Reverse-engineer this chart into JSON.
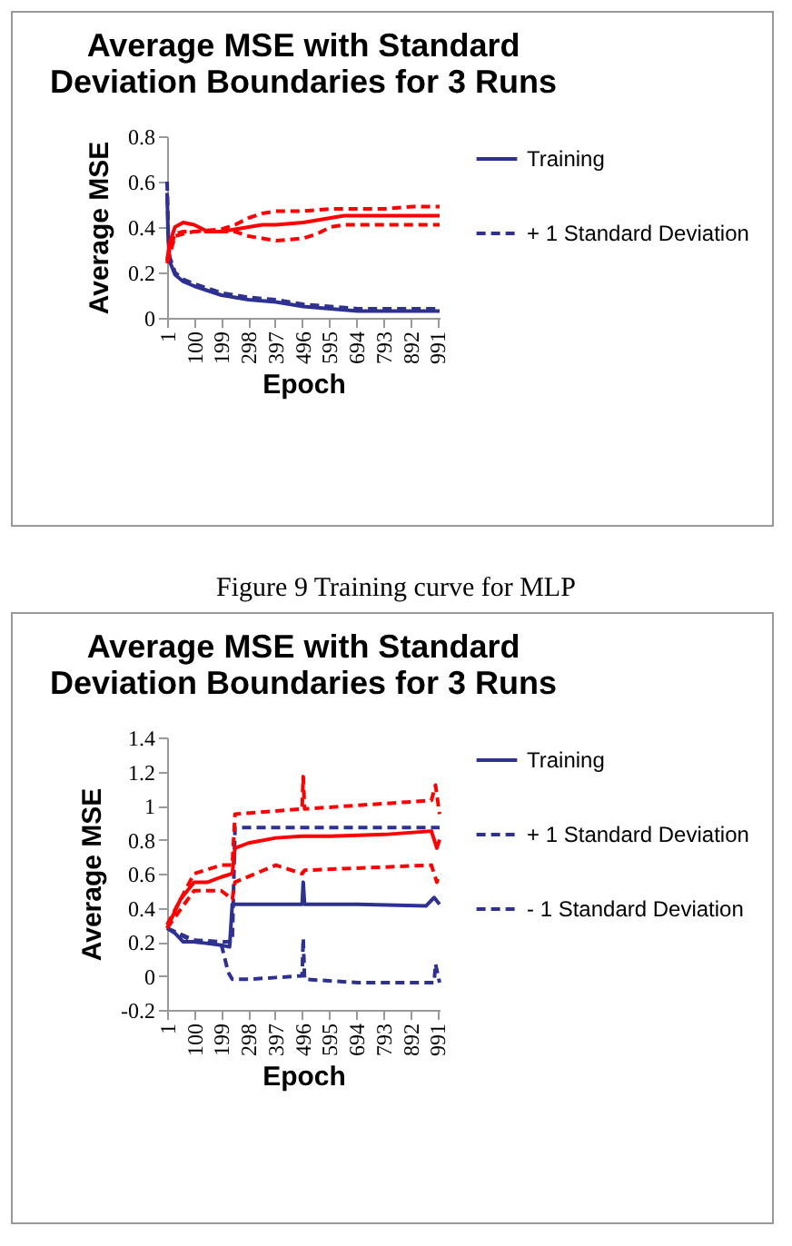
{
  "chart_data": [
    {
      "type": "line",
      "title": [
        "Average MSE with Standard",
        "Deviation Boundaries for 3 Runs"
      ],
      "xlabel": "Epoch",
      "ylabel": "Average MSE",
      "xlim": [
        1,
        1000
      ],
      "xticks": [
        1,
        100,
        199,
        298,
        397,
        496,
        595,
        694,
        793,
        892,
        991
      ],
      "ylim": [
        0,
        0.8
      ],
      "yticks": [
        0,
        0.2,
        0.4,
        0.6,
        0.8
      ],
      "grid": false,
      "legend": "right",
      "marker": "none",
      "annotations": [
        "Figure 9 Training curve for MLP"
      ],
      "series": [
        {
          "name": "Training",
          "color": "#2e3192",
          "line_style": "solid",
          "x": [
            1,
            5,
            10,
            30,
            60,
            100,
            150,
            200,
            250,
            300,
            400,
            500,
            600,
            700,
            800,
            900,
            1000
          ],
          "values": [
            0.55,
            0.35,
            0.25,
            0.19,
            0.16,
            0.14,
            0.12,
            0.1,
            0.09,
            0.08,
            0.07,
            0.05,
            0.04,
            0.03,
            0.03,
            0.03,
            0.03
          ]
        },
        {
          "name": "+ 1 Standard Deviation",
          "color": "#2e3192",
          "line_style": "dashed",
          "x": [
            1,
            5,
            10,
            30,
            60,
            100,
            150,
            200,
            250,
            300,
            400,
            500,
            600,
            700,
            800,
            900,
            1000
          ],
          "values": [
            0.6,
            0.38,
            0.27,
            0.2,
            0.17,
            0.15,
            0.13,
            0.11,
            0.1,
            0.09,
            0.08,
            0.06,
            0.05,
            0.04,
            0.04,
            0.04,
            0.04
          ]
        },
        {
          "color": "#ff0000",
          "line_style": "solid",
          "x": [
            1,
            10,
            30,
            60,
            100,
            150,
            200,
            250,
            300,
            350,
            400,
            500,
            600,
            650,
            700,
            800,
            900,
            1000
          ],
          "values": [
            0.25,
            0.33,
            0.4,
            0.42,
            0.41,
            0.38,
            0.38,
            0.39,
            0.4,
            0.41,
            0.41,
            0.42,
            0.44,
            0.45,
            0.45,
            0.45,
            0.45,
            0.45
          ]
        },
        {
          "color": "#ff0000",
          "line_style": "dashed",
          "x": [
            1,
            30,
            60,
            100,
            200,
            250,
            300,
            350,
            400,
            500,
            600,
            700,
            800,
            900,
            1000
          ],
          "values": [
            0.26,
            0.37,
            0.38,
            0.38,
            0.39,
            0.41,
            0.44,
            0.46,
            0.47,
            0.47,
            0.48,
            0.48,
            0.48,
            0.49,
            0.49
          ]
        },
        {
          "color": "#ff0000",
          "line_style": "dashed",
          "x": [
            1,
            30,
            60,
            100,
            200,
            250,
            300,
            350,
            400,
            500,
            550,
            600,
            650,
            700,
            800,
            900,
            1000
          ],
          "values": [
            0.24,
            0.36,
            0.37,
            0.38,
            0.38,
            0.38,
            0.36,
            0.35,
            0.34,
            0.35,
            0.37,
            0.4,
            0.41,
            0.41,
            0.41,
            0.41,
            0.41
          ]
        }
      ]
    },
    {
      "type": "line",
      "title": [
        "Average MSE with Standard",
        "Deviation Boundaries for 3 Runs"
      ],
      "xlabel": "Epoch",
      "ylabel": "Average MSE",
      "xlim": [
        1,
        1000
      ],
      "xticks": [
        1,
        100,
        199,
        298,
        397,
        496,
        595,
        694,
        793,
        892,
        991
      ],
      "ylim": [
        -0.2,
        1.4
      ],
      "yticks": [
        -0.2,
        0,
        0.2,
        0.4,
        0.6,
        0.8,
        1,
        1.2,
        1.4
      ],
      "grid": false,
      "legend": "right",
      "marker": "none",
      "series": [
        {
          "name": "Training",
          "color": "#2e3192",
          "line_style": "solid",
          "x": [
            1,
            30,
            60,
            100,
            150,
            199,
            230,
            240,
            300,
            400,
            496,
            500,
            505,
            700,
            950,
            980,
            1000
          ],
          "values": [
            0.28,
            0.25,
            0.2,
            0.2,
            0.19,
            0.18,
            0.17,
            0.42,
            0.42,
            0.42,
            0.42,
            0.55,
            0.42,
            0.42,
            0.41,
            0.46,
            0.42
          ]
        },
        {
          "name": "+ 1 Standard Deviation",
          "color": "#2e3192",
          "line_style": "dashed",
          "x": [
            1,
            100,
            199,
            240,
            250,
            496,
            1000
          ],
          "values": [
            0.28,
            0.21,
            0.2,
            0.2,
            0.87,
            0.87,
            0.87
          ]
        },
        {
          "name": "- 1 Standard Deviation",
          "color": "#2e3192",
          "line_style": "dashed",
          "x": [
            1,
            100,
            199,
            225,
            240,
            300,
            400,
            496,
            500,
            505,
            700,
            980,
            985,
            1000
          ],
          "values": [
            0.28,
            0.2,
            0.19,
            0.02,
            -0.02,
            -0.02,
            -0.01,
            0,
            0.22,
            -0.02,
            -0.04,
            -0.04,
            0.07,
            -0.04
          ]
        },
        {
          "color": "#ff0000",
          "line_style": "solid",
          "x": [
            1,
            50,
            100,
            150,
            199,
            240,
            250,
            300,
            400,
            496,
            600,
            800,
            970,
            990,
            1000
          ],
          "values": [
            0.28,
            0.45,
            0.55,
            0.55,
            0.58,
            0.6,
            0.75,
            0.78,
            0.81,
            0.82,
            0.82,
            0.83,
            0.85,
            0.75,
            0.8
          ]
        },
        {
          "color": "#ff0000",
          "line_style": "dashed",
          "x": [
            1,
            100,
            199,
            240,
            250,
            496,
            500,
            505,
            970,
            985,
            1000
          ],
          "values": [
            0.3,
            0.6,
            0.65,
            0.65,
            0.95,
            0.98,
            1.17,
            0.98,
            1.03,
            1.12,
            0.95
          ]
        },
        {
          "color": "#ff0000",
          "line_style": "dashed",
          "x": [
            1,
            100,
            199,
            240,
            250,
            400,
            496,
            505,
            970,
            990,
            1000
          ],
          "values": [
            0.28,
            0.5,
            0.5,
            0.45,
            0.55,
            0.65,
            0.6,
            0.62,
            0.65,
            0.55,
            0.6
          ]
        }
      ]
    }
  ]
}
